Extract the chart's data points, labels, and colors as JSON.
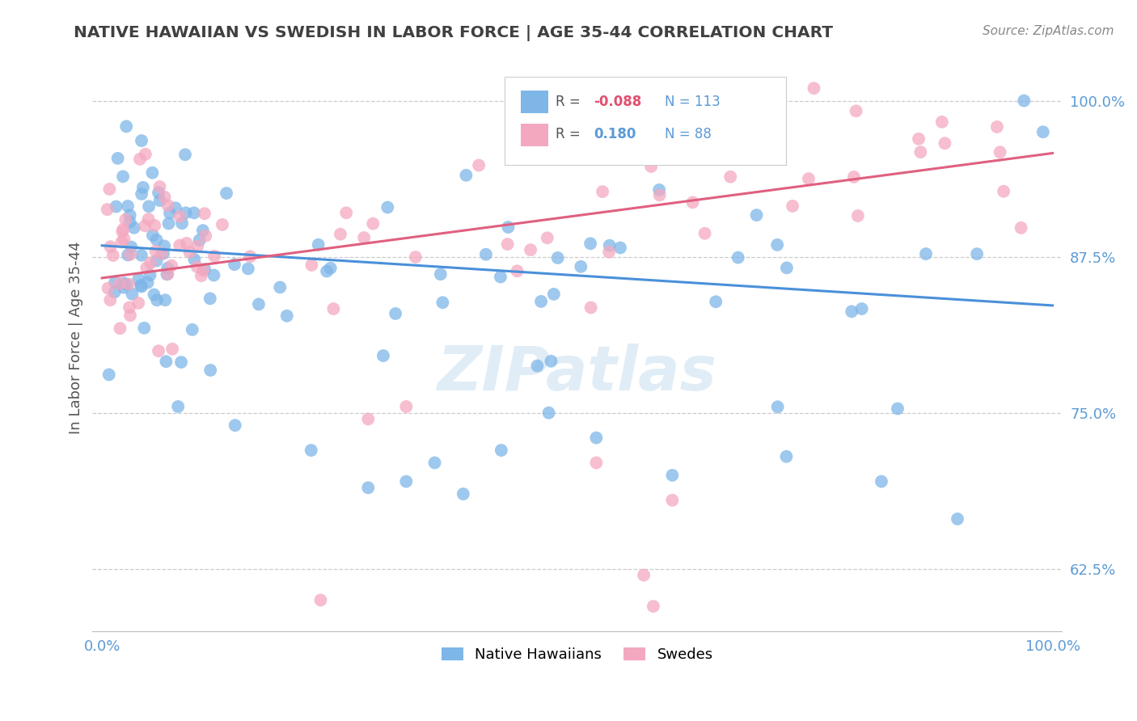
{
  "title": "NATIVE HAWAIIAN VS SWEDISH IN LABOR FORCE | AGE 35-44 CORRELATION CHART",
  "source": "Source: ZipAtlas.com",
  "ylabel": "In Labor Force | Age 35-44",
  "ytick_labels": [
    "62.5%",
    "75.0%",
    "87.5%",
    "100.0%"
  ],
  "ytick_values": [
    0.625,
    0.75,
    0.875,
    1.0
  ],
  "xlim": [
    -0.01,
    1.01
  ],
  "ylim": [
    0.575,
    1.045
  ],
  "blue_color": "#7EB6E8",
  "pink_color": "#F4A8C0",
  "blue_line_color": "#4A90D9",
  "pink_line_color": "#E06080",
  "R_blue": -0.088,
  "N_blue": 113,
  "R_pink": 0.18,
  "N_pink": 88,
  "watermark": "ZIPatlas",
  "title_color": "#404040",
  "label_color": "#5B9BD5",
  "legend_R_blue_color": "#E05070",
  "legend_R_pink_color": "#5B9BD5",
  "blue_line_start_y": 0.884,
  "blue_line_end_y": 0.836,
  "pink_line_start_y": 0.858,
  "pink_line_end_y": 0.958
}
